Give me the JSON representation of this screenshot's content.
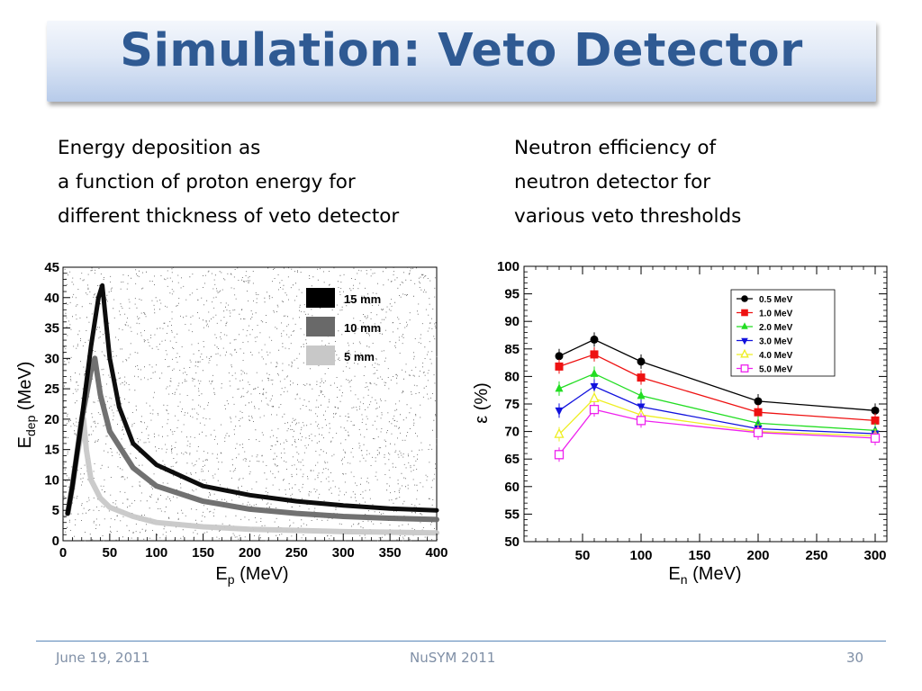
{
  "slide": {
    "title": "Simulation: Veto Detector",
    "left_caption": [
      "Energy deposition as",
      "a function of proton energy for",
      "different thickness of veto detector"
    ],
    "right_caption": [
      "Neutron efficiency of",
      "neutron detector for",
      "various veto thresholds"
    ]
  },
  "footer": {
    "date": "June 19, 2011",
    "conference": "NuSYM 2011",
    "page": "30"
  },
  "colors": {
    "title": "#2f5a93",
    "title_bg_top": "#f4f7fc",
    "title_bg_bottom": "#b7cbea",
    "footer_line": "#5b87b9"
  },
  "chart_data": [
    {
      "type": "scatter",
      "title": "",
      "xlabel": "E_p (MeV)",
      "ylabel": "E_dep (MeV)",
      "xlim": [
        0,
        400
      ],
      "ylim": [
        0,
        45
      ],
      "x_ticks": [
        0,
        50,
        100,
        150,
        200,
        250,
        300,
        350,
        400
      ],
      "y_ticks": [
        0,
        5,
        10,
        15,
        20,
        25,
        30,
        35,
        40,
        45
      ],
      "legend_position": "top-right",
      "series": [
        {
          "name": "15 mm",
          "color": "#000000",
          "x": [
            5,
            10,
            20,
            30,
            38,
            42,
            50,
            60,
            75,
            100,
            150,
            200,
            250,
            300,
            350,
            400
          ],
          "y": [
            4.5,
            9,
            20,
            32,
            40,
            42,
            30,
            22,
            16,
            12.5,
            9,
            7.5,
            6.5,
            5.8,
            5.3,
            5
          ]
        },
        {
          "name": "10 mm",
          "color": "#696969",
          "x": [
            5,
            10,
            20,
            30,
            34,
            40,
            50,
            75,
            100,
            150,
            200,
            250,
            300,
            350,
            400
          ],
          "y": [
            4.5,
            9,
            20,
            28,
            30,
            24,
            18,
            12,
            9,
            6.5,
            5.2,
            4.5,
            4,
            3.7,
            3.5
          ]
        },
        {
          "name": "5 mm",
          "color": "#c8c8c8",
          "x": [
            5,
            10,
            15,
            20,
            22,
            25,
            30,
            40,
            50,
            75,
            100,
            150,
            200,
            250,
            300,
            350,
            400
          ],
          "y": [
            4.5,
            9,
            14,
            18,
            20,
            15,
            10,
            7,
            5.5,
            4,
            3,
            2.3,
            1.9,
            1.7,
            1.5,
            1.4,
            1.3
          ]
        }
      ]
    },
    {
      "type": "line",
      "title": "",
      "xlabel": "E_n (MeV)",
      "ylabel": "ε (%)",
      "xlim": [
        0,
        310
      ],
      "ylim": [
        50,
        100
      ],
      "x_ticks": [
        50,
        100,
        150,
        200,
        250,
        300
      ],
      "y_ticks": [
        50,
        55,
        60,
        65,
        70,
        75,
        80,
        85,
        90,
        95,
        100
      ],
      "legend_position": "top-right",
      "x": [
        30,
        60,
        100,
        200,
        300
      ],
      "series": [
        {
          "name": "0.5 MeV",
          "color": "#000000",
          "marker": "circle",
          "values": [
            83.7,
            86.7,
            82.7,
            75.5,
            73.8
          ]
        },
        {
          "name": "1.0 MeV",
          "color": "#ee1111",
          "marker": "square",
          "values": [
            81.8,
            84.0,
            79.8,
            73.5,
            72.0
          ]
        },
        {
          "name": "2.0 MeV",
          "color": "#22dd22",
          "marker": "triangle-up",
          "values": [
            77.8,
            80.5,
            76.5,
            71.5,
            70.2
          ]
        },
        {
          "name": "3.0 MeV",
          "color": "#1111dd",
          "marker": "triangle-down",
          "values": [
            73.8,
            78.2,
            74.5,
            70.5,
            69.6
          ]
        },
        {
          "name": "4.0 MeV",
          "color": "#eeee22",
          "marker": "open-triangle",
          "values": [
            69.5,
            76.0,
            73.0,
            70.0,
            69.2
          ]
        },
        {
          "name": "5.0 MeV",
          "color": "#ee22ee",
          "marker": "open-square",
          "values": [
            65.8,
            74.0,
            72.0,
            69.8,
            68.8
          ]
        }
      ]
    }
  ]
}
